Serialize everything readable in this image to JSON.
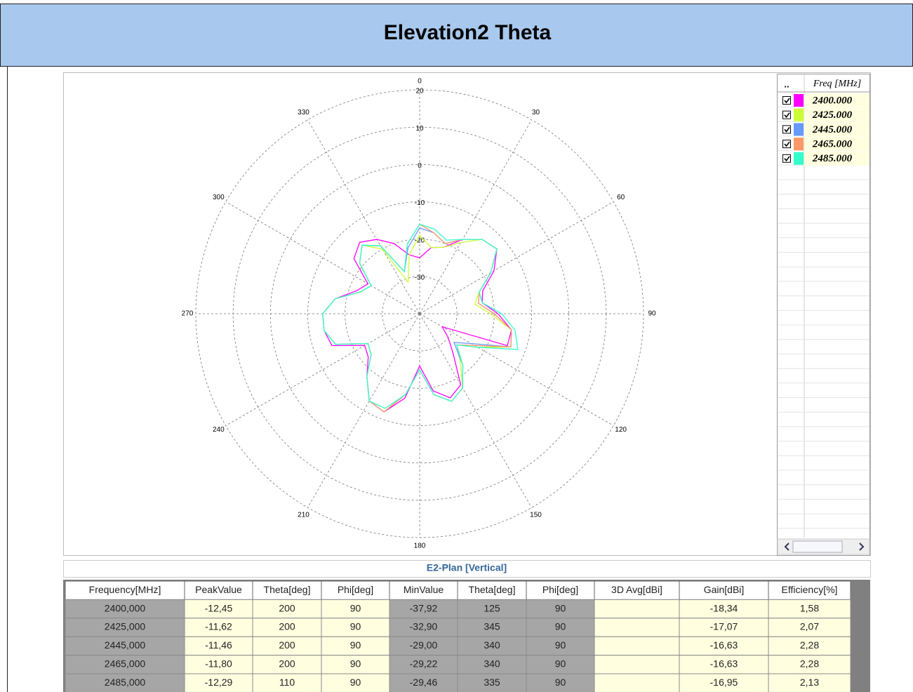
{
  "header": {
    "title": "Elevation2  Theta"
  },
  "chart_data": {
    "type": "polar",
    "theta": [
      0,
      10,
      20,
      30,
      40,
      50,
      60,
      70,
      80,
      90,
      100,
      110,
      120,
      130,
      140,
      150,
      160,
      170,
      180,
      190,
      200,
      210,
      220,
      230,
      240,
      250,
      260,
      270,
      280,
      290,
      300,
      310,
      320,
      330,
      340,
      350
    ],
    "rlim": [
      -40,
      20
    ],
    "rticks": [
      -30,
      -20,
      -10,
      0,
      10,
      20
    ],
    "thetaticks": [
      0,
      30,
      60,
      90,
      120,
      150,
      180,
      210,
      240,
      270,
      300,
      330
    ],
    "grid": true,
    "series": [
      {
        "name": "2400.000",
        "color": "#ff00ff",
        "values": [
          -25,
          -22,
          -21,
          -17,
          -14,
          -13,
          -17,
          -22,
          -23,
          -19,
          -15,
          -15,
          -33,
          -30,
          -26,
          -18,
          -16,
          -19,
          -26,
          -17,
          -12,
          -13,
          -18,
          -22,
          -23,
          -15,
          -14,
          -14,
          -17,
          -22,
          -24,
          -17,
          -15,
          -17,
          -20,
          -24
        ]
      },
      {
        "name": "2425.000",
        "color": "#ccff33",
        "values": [
          -19,
          -22,
          -21,
          -18,
          -14,
          -13,
          -18,
          -23,
          -25,
          -21,
          -15,
          -14,
          -22,
          -27,
          -23,
          -17,
          -15,
          -18,
          -25,
          -18,
          -12,
          -13,
          -18,
          -23,
          -24,
          -16,
          -14,
          -14,
          -17,
          -23,
          -25,
          -19,
          -16,
          -20,
          -31,
          -24
        ]
      },
      {
        "name": "2445.000",
        "color": "#6699ff",
        "values": [
          -17,
          -18,
          -20,
          -17,
          -14,
          -13,
          -18,
          -23,
          -24,
          -20,
          -15,
          -14,
          -24,
          -28,
          -22,
          -17,
          -15,
          -18,
          -25,
          -18,
          -12,
          -13,
          -18,
          -23,
          -24,
          -16,
          -14,
          -14,
          -17,
          -23,
          -25,
          -19,
          -16,
          -19,
          -28,
          -22
        ]
      },
      {
        "name": "2465.000",
        "color": "#ff9966",
        "values": [
          -16,
          -18,
          -20,
          -17,
          -14,
          -13,
          -18,
          -23,
          -24,
          -20,
          -15,
          -14,
          -23,
          -27,
          -22,
          -17,
          -15,
          -18,
          -25,
          -18,
          -12,
          -13,
          -18,
          -23,
          -24,
          -16,
          -14,
          -14,
          -17,
          -23,
          -25,
          -19,
          -16,
          -19,
          -28,
          -21
        ]
      },
      {
        "name": "2485.000",
        "color": "#33ffcc",
        "values": [
          -16,
          -17,
          -19,
          -17,
          -14,
          -13,
          -18,
          -23,
          -23,
          -18,
          -14,
          -12,
          -22,
          -27,
          -22,
          -17,
          -15,
          -18,
          -25,
          -18,
          -13,
          -13,
          -18,
          -23,
          -24,
          -16,
          -14,
          -14,
          -17,
          -23,
          -25,
          -19,
          -16,
          -19,
          -28,
          -21
        ]
      }
    ]
  },
  "legend": {
    "headers": [
      "..",
      "Freq [MHz]"
    ]
  },
  "caption": "E2-Plan [Vertical]",
  "table": {
    "columns": [
      "Frequency[MHz]",
      "PeakValue",
      "Theta[deg]",
      "Phi[deg]",
      "MinValue",
      "Theta[deg]",
      "Phi[deg]",
      "3D Avg[dBi]",
      "Gain[dBi]",
      "Efficiency[%]"
    ],
    "rows": [
      [
        "2400,000",
        "-12,45",
        200,
        90,
        "-37,92",
        125,
        90,
        null,
        "-18,34",
        "1,58"
      ],
      [
        "2425,000",
        "-11,62",
        200,
        90,
        "-32,90",
        345,
        90,
        null,
        "-17,07",
        "2,07"
      ],
      [
        "2445,000",
        "-11,46",
        200,
        90,
        "-29,00",
        340,
        90,
        null,
        "-16,63",
        "2,28"
      ],
      [
        "2465,000",
        "-11,80",
        200,
        90,
        "-29,22",
        340,
        90,
        null,
        "-16,63",
        "2,28"
      ],
      [
        "2485,000",
        "-12,29",
        110,
        90,
        "-29,46",
        335,
        90,
        null,
        "-16,95",
        "2,13"
      ]
    ]
  }
}
